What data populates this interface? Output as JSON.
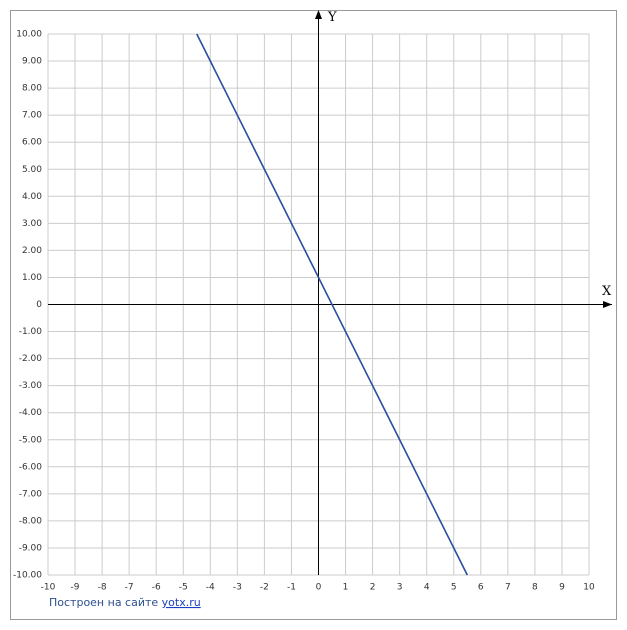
{
  "chart_data": {
    "type": "line",
    "x": [
      -4.5,
      5.5
    ],
    "values": [
      10,
      -10
    ],
    "color": "#2a4fa0",
    "xlim": [
      -10,
      10
    ],
    "ylim": [
      -10,
      10
    ],
    "xticks": [
      -10,
      -9,
      -8,
      -7,
      -6,
      -5,
      -4,
      -3,
      -2,
      -1,
      0,
      1,
      2,
      3,
      4,
      5,
      6,
      7,
      8,
      9,
      10
    ],
    "yticks": [
      {
        "value": 10,
        "label": "10.00"
      },
      {
        "value": 9,
        "label": "9.00"
      },
      {
        "value": 8,
        "label": "8.00"
      },
      {
        "value": 7,
        "label": "7.00"
      },
      {
        "value": 6,
        "label": "6.00"
      },
      {
        "value": 5,
        "label": "5.00"
      },
      {
        "value": 4,
        "label": "4.00"
      },
      {
        "value": 3,
        "label": "3.00"
      },
      {
        "value": 2,
        "label": "2.00"
      },
      {
        "value": 1,
        "label": "1.00"
      },
      0,
      {
        "value": -1,
        "label": "-1.00"
      },
      {
        "value": -2,
        "label": "-2.00"
      },
      {
        "value": -3,
        "label": "-3.00"
      },
      {
        "value": -4,
        "label": "-4.00"
      },
      {
        "value": -5,
        "label": "-5.00"
      },
      {
        "value": -6,
        "label": "-6.00"
      },
      {
        "value": -7,
        "label": "-7.00"
      },
      {
        "value": -8,
        "label": "-8.00"
      },
      {
        "value": -9,
        "label": "-9.00"
      },
      {
        "value": -10,
        "label": "-10.00"
      }
    ],
    "grid": true,
    "x_label": "X",
    "y_label": "Y",
    "credit": {
      "text": "Построен на сайте",
      "link": "yotx.ru"
    }
  }
}
